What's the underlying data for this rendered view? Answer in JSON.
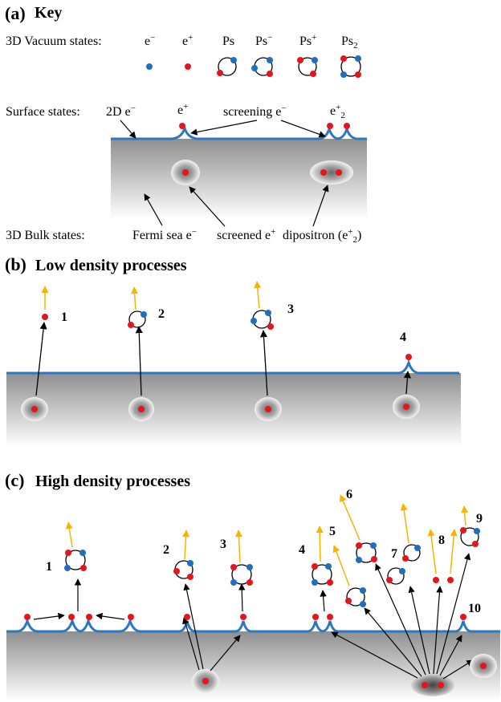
{
  "colors": {
    "electron": "#1f6fbf",
    "positron": "#e8141c",
    "surface": "#2a78c4",
    "arrow_up": "#f5b400",
    "arrow": "#000000",
    "bulk_top": "#8f8f8f",
    "bulk_bottom": "#ffffff"
  },
  "panel_a": {
    "letter": "(a)",
    "title": "Key",
    "vacuum": {
      "label": "3D Vacuum states:",
      "items": [
        {
          "label": "e−",
          "icon": "electron-dot"
        },
        {
          "label": "e+",
          "icon": "positron-dot"
        },
        {
          "label": "Ps",
          "icon": "positronium-icon"
        },
        {
          "label": "Ps−",
          "icon": "positronium-ion-minus-icon"
        },
        {
          "label": "Ps+",
          "icon": "positronium-ion-plus-icon"
        },
        {
          "label": "Ps2",
          "icon": "positronium-molecule-icon"
        }
      ]
    },
    "surface": {
      "label": "Surface states:",
      "items": [
        "2D e−",
        "e+",
        "screening e−",
        "e+2"
      ]
    },
    "bulk": {
      "label": "3D Bulk states:",
      "items": [
        "Fermi sea e−",
        "screened e+",
        "dipositron (e+2)"
      ]
    }
  },
  "panel_b": {
    "letter": "(b)",
    "title": "Low density processes",
    "numbers": [
      "1",
      "2",
      "3",
      "4"
    ]
  },
  "panel_c": {
    "letter": "(c)",
    "title": "High density processes",
    "numbers": [
      "1",
      "2",
      "3",
      "4",
      "5",
      "6",
      "7",
      "8",
      "9",
      "10"
    ]
  }
}
